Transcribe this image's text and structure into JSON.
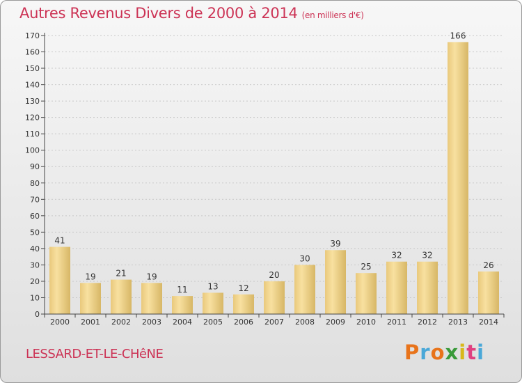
{
  "header": {
    "title": "Autres Revenus Divers de 2000 à 2014",
    "unit_note": "(en milliers d'€)"
  },
  "footer": {
    "commune": "LESSARD-ET-LE-CHêNE",
    "logo_text": "Proxiti",
    "logo_colors": [
      "#e8731a",
      "#4aa8d8",
      "#e8731a",
      "#3a9a3a",
      "#d8b81a",
      "#e04080",
      "#4aa8d8"
    ]
  },
  "colors": {
    "title": "#cc3355",
    "bar_light": "#f7dc96",
    "bar_dark": "#d9bd72",
    "axis": "#444444",
    "grid": "#c8c8c8"
  },
  "chart_data": {
    "type": "bar",
    "title": "Autres Revenus Divers de 2000 à 2014",
    "xlabel": "",
    "ylabel": "",
    "categories": [
      "2000",
      "2001",
      "2002",
      "2003",
      "2004",
      "2005",
      "2006",
      "2007",
      "2008",
      "2009",
      "2010",
      "2011",
      "2012",
      "2013",
      "2014"
    ],
    "values": [
      41,
      19,
      21,
      19,
      11,
      13,
      12,
      20,
      30,
      39,
      25,
      32,
      32,
      166,
      26
    ],
    "ylim": [
      0,
      170
    ],
    "ytick_step": 10,
    "grid": true,
    "data_labels": true
  }
}
